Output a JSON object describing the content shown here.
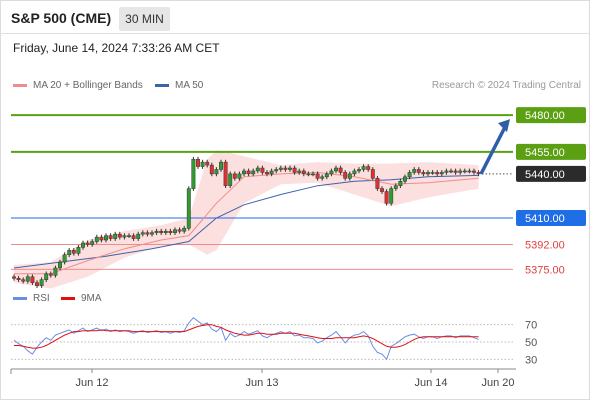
{
  "header": {
    "title": "S&P 500 (CME)",
    "timeframe": "30 MIN"
  },
  "datetime": "Friday, June 14, 2024 7:33:26 AM CET",
  "legend": {
    "ma20_label": "MA 20 + Bollinger Bands",
    "ma50_label": "MA 50",
    "rsi_label": "RSI",
    "ma9_label": "9MA",
    "copyright": "Research © 2024 Trading Central"
  },
  "colors": {
    "ma20": "#f08c8c",
    "ma50": "#3f62a8",
    "bollinger": "#fbd9d9",
    "resistance": "#5aa012",
    "support_primary": "#1f6ee6",
    "support_secondary": "#f08c8c",
    "last_price": "#2b2b2b",
    "rsi": "#6a8ee6",
    "rsi_ma": "#e01010"
  },
  "chart_data": {
    "type": "candlestick",
    "symbol": "S&P 500 (CME)",
    "interval": "30 MIN",
    "x_labels": [
      "Jun 12",
      "Jun 13",
      "Jun 14",
      "Jun 20"
    ],
    "y_range": [
      5361,
      5493
    ],
    "levels": [
      {
        "value": "5480.00",
        "type": "resistance"
      },
      {
        "value": "5455.00",
        "type": "resistance"
      },
      {
        "value": "5440.00",
        "type": "last"
      },
      {
        "value": "5410.00",
        "type": "support-primary"
      },
      {
        "value": "5392.00",
        "type": "support"
      },
      {
        "value": "5375.00",
        "type": "support"
      }
    ],
    "closes": [
      5369,
      5368,
      5367,
      5370,
      5366,
      5364,
      5368,
      5372,
      5371,
      5376,
      5380,
      5385,
      5388,
      5386,
      5390,
      5393,
      5392,
      5394,
      5397,
      5395,
      5398,
      5396,
      5399,
      5397,
      5398,
      5398,
      5396,
      5399,
      5400,
      5399,
      5400,
      5401,
      5400,
      5401,
      5400,
      5402,
      5401,
      5403,
      5430,
      5450,
      5445,
      5448,
      5446,
      5440,
      5443,
      5448,
      5432,
      5440,
      5437,
      5440,
      5442,
      5440,
      5442,
      5444,
      5441,
      5440,
      5442,
      5443,
      5444,
      5443,
      5444,
      5441,
      5442,
      5440,
      5440,
      5440,
      5437,
      5438,
      5440,
      5442,
      5444,
      5441,
      5437,
      5440,
      5442,
      5443,
      5445,
      5443,
      5437,
      5430,
      5428,
      5420,
      5430,
      5432,
      5435,
      5438,
      5441,
      5443,
      5441,
      5440,
      5441,
      5441,
      5440,
      5441,
      5442,
      5442,
      5441,
      5442,
      5442,
      5442,
      5441,
      5440
    ],
    "ma20_points": [
      [
        0,
        5372
      ],
      [
        8,
        5372
      ],
      [
        16,
        5381
      ],
      [
        24,
        5389
      ],
      [
        32,
        5395
      ],
      [
        38,
        5398
      ],
      [
        44,
        5420
      ],
      [
        50,
        5438
      ],
      [
        58,
        5440
      ],
      [
        66,
        5441
      ],
      [
        74,
        5438
      ],
      [
        82,
        5433
      ],
      [
        90,
        5434
      ],
      [
        101,
        5437
      ]
    ],
    "ma50_points": [
      [
        0,
        5376
      ],
      [
        10,
        5380
      ],
      [
        20,
        5384
      ],
      [
        30,
        5389
      ],
      [
        38,
        5394
      ],
      [
        44,
        5410
      ],
      [
        50,
        5419
      ],
      [
        58,
        5426
      ],
      [
        66,
        5432
      ],
      [
        74,
        5435
      ],
      [
        82,
        5436
      ],
      [
        90,
        5438
      ],
      [
        101,
        5439
      ]
    ],
    "bollinger": {
      "upper": [
        [
          0,
          5378
        ],
        [
          8,
          5380
        ],
        [
          16,
          5395
        ],
        [
          24,
          5401
        ],
        [
          32,
          5405
        ],
        [
          38,
          5410
        ],
        [
          42,
          5450
        ],
        [
          44,
          5456
        ],
        [
          46,
          5455
        ],
        [
          50,
          5452
        ],
        [
          58,
          5446
        ],
        [
          66,
          5448
        ],
        [
          74,
          5447
        ],
        [
          82,
          5447
        ],
        [
          90,
          5448
        ],
        [
          101,
          5446
        ]
      ],
      "lower": [
        [
          0,
          5366
        ],
        [
          8,
          5362
        ],
        [
          16,
          5370
        ],
        [
          24,
          5383
        ],
        [
          32,
          5391
        ],
        [
          38,
          5392
        ],
        [
          42,
          5385
        ],
        [
          44,
          5388
        ],
        [
          50,
          5420
        ],
        [
          58,
          5433
        ],
        [
          66,
          5434
        ],
        [
          74,
          5426
        ],
        [
          82,
          5418
        ],
        [
          90,
          5424
        ],
        [
          101,
          5430
        ]
      ]
    },
    "forecast_arrow": {
      "from": 5440,
      "to": 5480
    },
    "rsi": {
      "levels": [
        30,
        50,
        70
      ],
      "range": [
        20,
        80
      ],
      "values": [
        52,
        48,
        45,
        40,
        36,
        44,
        50,
        55,
        52,
        58,
        60,
        62,
        64,
        60,
        63,
        66,
        62,
        64,
        66,
        63,
        65,
        62,
        64,
        62,
        63,
        62,
        60,
        62,
        63,
        61,
        62,
        63,
        61,
        62,
        60,
        62,
        61,
        63,
        72,
        78,
        74,
        70,
        72,
        65,
        62,
        67,
        52,
        60,
        56,
        58,
        62,
        59,
        61,
        63,
        57,
        55,
        58,
        60,
        62,
        60,
        62,
        57,
        58,
        55,
        55,
        54,
        49,
        51,
        55,
        58,
        62,
        56,
        49,
        55,
        58,
        59,
        62,
        57,
        45,
        38,
        36,
        30,
        45,
        48,
        52,
        56,
        58,
        59,
        56,
        54,
        56,
        56,
        54,
        56,
        57,
        57,
        55,
        57,
        57,
        57,
        55,
        53
      ],
      "ma9": [
        46,
        46,
        45,
        44,
        43,
        43,
        44,
        46,
        49,
        52,
        55,
        58,
        60,
        62,
        62,
        63,
        63,
        63,
        63,
        64,
        63,
        63,
        63,
        63,
        63,
        63,
        62,
        62,
        62,
        62,
        62,
        62,
        62,
        62,
        62,
        62,
        62,
        62,
        64,
        66,
        68,
        69,
        70,
        70,
        68,
        67,
        64,
        62,
        60,
        59,
        58,
        58,
        59,
        60,
        60,
        59,
        59,
        59,
        60,
        60,
        60,
        60,
        59,
        58,
        57,
        56,
        55,
        54,
        54,
        54,
        55,
        55,
        55,
        55,
        55,
        56,
        57,
        56,
        54,
        51,
        48,
        45,
        44,
        44,
        45,
        47,
        50,
        53,
        55,
        56,
        56,
        56,
        56,
        56,
        56,
        56,
        56,
        56,
        56,
        56,
        56,
        56
      ]
    }
  }
}
